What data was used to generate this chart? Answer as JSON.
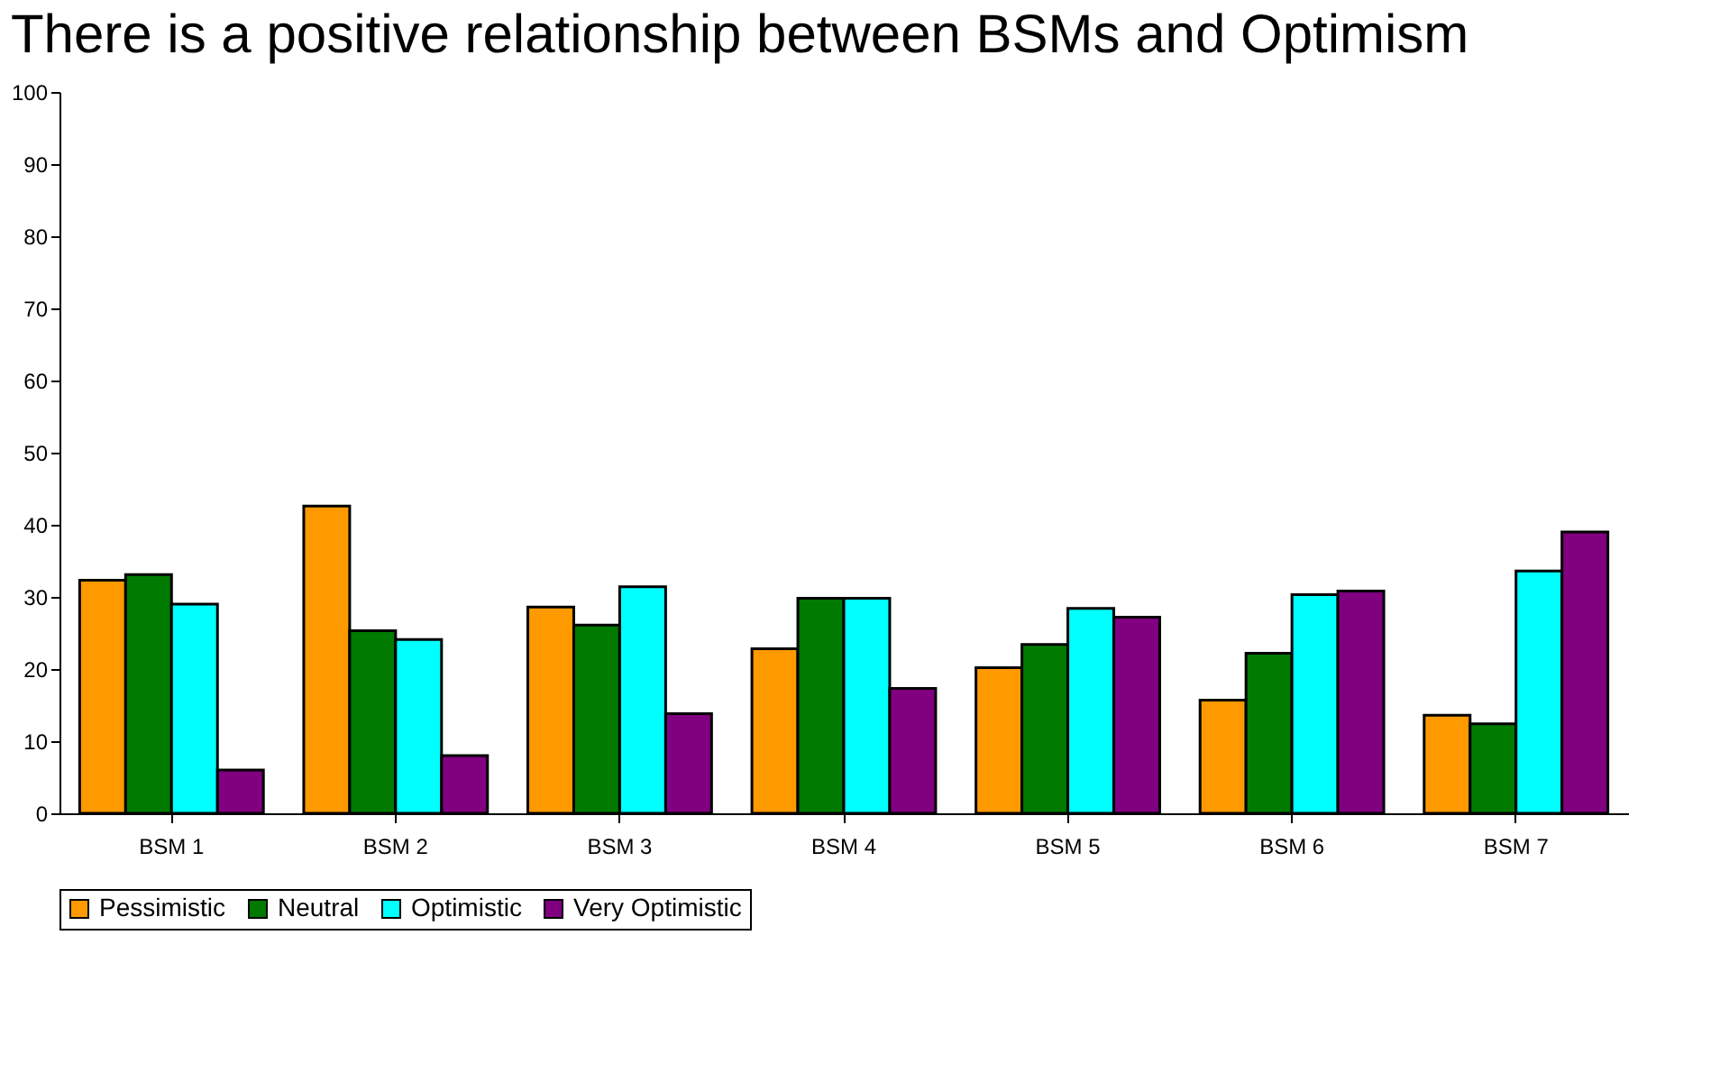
{
  "chart_data": {
    "type": "bar",
    "title": "There is a positive relationship between BSMs and Optimism",
    "categories": [
      "BSM 1",
      "BSM 2",
      "BSM 3",
      "BSM 4",
      "BSM 5",
      "BSM 6",
      "BSM 7"
    ],
    "series": [
      {
        "name": "Pessimistic",
        "color": "#ff9900",
        "values": [
          32.3,
          42.6,
          28.6,
          22.8,
          20.2,
          15.7,
          13.6
        ]
      },
      {
        "name": "Neutral",
        "color": "#007a00",
        "values": [
          33.1,
          25.3,
          26.1,
          29.8,
          23.4,
          22.2,
          12.4
        ]
      },
      {
        "name": "Optimistic",
        "color": "#00ffff",
        "values": [
          29.0,
          24.1,
          31.4,
          29.8,
          28.4,
          30.3,
          33.6
        ]
      },
      {
        "name": "Very Optimistic",
        "color": "#800080",
        "values": [
          6.0,
          8.0,
          13.8,
          17.3,
          27.2,
          30.8,
          39.0
        ]
      }
    ],
    "ylim": [
      0,
      100
    ],
    "yticks": [
      0,
      10,
      20,
      30,
      40,
      50,
      60,
      70,
      80,
      90,
      100
    ],
    "grid": false,
    "legend": "bottom"
  }
}
